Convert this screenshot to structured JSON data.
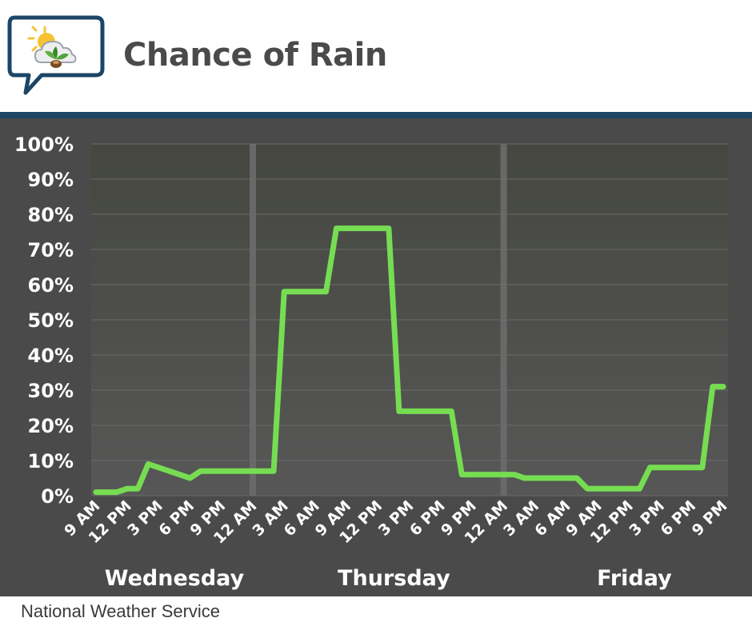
{
  "header": {
    "title": "Chance of Rain"
  },
  "footer": {
    "source": "National Weather Service"
  },
  "colors": {
    "background": "#4a4a4a",
    "plot_background_top": "#454740",
    "plot_background_bottom": "#575757",
    "line": "#76dd52",
    "divider_bar": "#1c4566",
    "title": "#4a4a4a"
  },
  "icons": {
    "logo": "weather-speech-bubble-icon"
  },
  "chart_data": {
    "type": "line",
    "title": "Chance of Rain",
    "xlabel": "",
    "ylabel": "",
    "ylim": [
      0,
      100
    ],
    "yticks": [
      "0%",
      "10%",
      "20%",
      "30%",
      "40%",
      "50%",
      "60%",
      "70%",
      "80%",
      "90%",
      "100%"
    ],
    "xtick_labels": [
      "9 AM",
      "12 PM",
      "3 PM",
      "6 PM",
      "9 PM",
      "12 AM",
      "3 AM",
      "6 AM",
      "9 AM",
      "12 PM",
      "3 PM",
      "6 PM",
      "9 PM",
      "12 AM",
      "3 AM",
      "6 AM",
      "9 AM",
      "12 PM",
      "3 PM",
      "6 PM",
      "9 PM"
    ],
    "day_labels": [
      "Wednesday",
      "Thursday",
      "Friday"
    ],
    "grid": true,
    "x_unit": "hours from Wednesday 9 AM",
    "series": [
      {
        "values": [
          [
            0,
            1
          ],
          [
            2,
            1
          ],
          [
            3,
            2
          ],
          [
            4,
            2
          ],
          [
            5,
            9
          ],
          [
            6,
            8
          ],
          [
            7,
            7
          ],
          [
            8,
            6
          ],
          [
            9,
            5
          ],
          [
            10,
            7
          ],
          [
            11,
            7
          ],
          [
            12,
            7
          ],
          [
            13,
            7
          ],
          [
            14,
            7
          ],
          [
            15,
            7
          ],
          [
            16,
            7
          ],
          [
            17,
            7
          ],
          [
            18,
            58
          ],
          [
            19,
            58
          ],
          [
            20,
            58
          ],
          [
            21,
            58
          ],
          [
            22,
            58
          ],
          [
            23,
            76
          ],
          [
            24,
            76
          ],
          [
            25,
            76
          ],
          [
            26,
            76
          ],
          [
            27,
            76
          ],
          [
            28,
            76
          ],
          [
            29,
            24
          ],
          [
            30,
            24
          ],
          [
            31,
            24
          ],
          [
            32,
            24
          ],
          [
            33,
            24
          ],
          [
            34,
            24
          ],
          [
            35,
            6
          ],
          [
            36,
            6
          ],
          [
            37,
            6
          ],
          [
            38,
            6
          ],
          [
            39,
            6
          ],
          [
            40,
            6
          ],
          [
            41,
            5
          ],
          [
            42,
            5
          ],
          [
            43,
            5
          ],
          [
            44,
            5
          ],
          [
            45,
            5
          ],
          [
            46,
            5
          ],
          [
            47,
            2
          ],
          [
            48,
            2
          ],
          [
            49,
            2
          ],
          [
            50,
            2
          ],
          [
            51,
            2
          ],
          [
            52,
            2
          ],
          [
            53,
            8
          ],
          [
            54,
            8
          ],
          [
            55,
            8
          ],
          [
            56,
            8
          ],
          [
            57,
            8
          ],
          [
            58,
            8
          ],
          [
            59,
            31
          ],
          [
            60,
            31
          ]
        ]
      }
    ]
  }
}
